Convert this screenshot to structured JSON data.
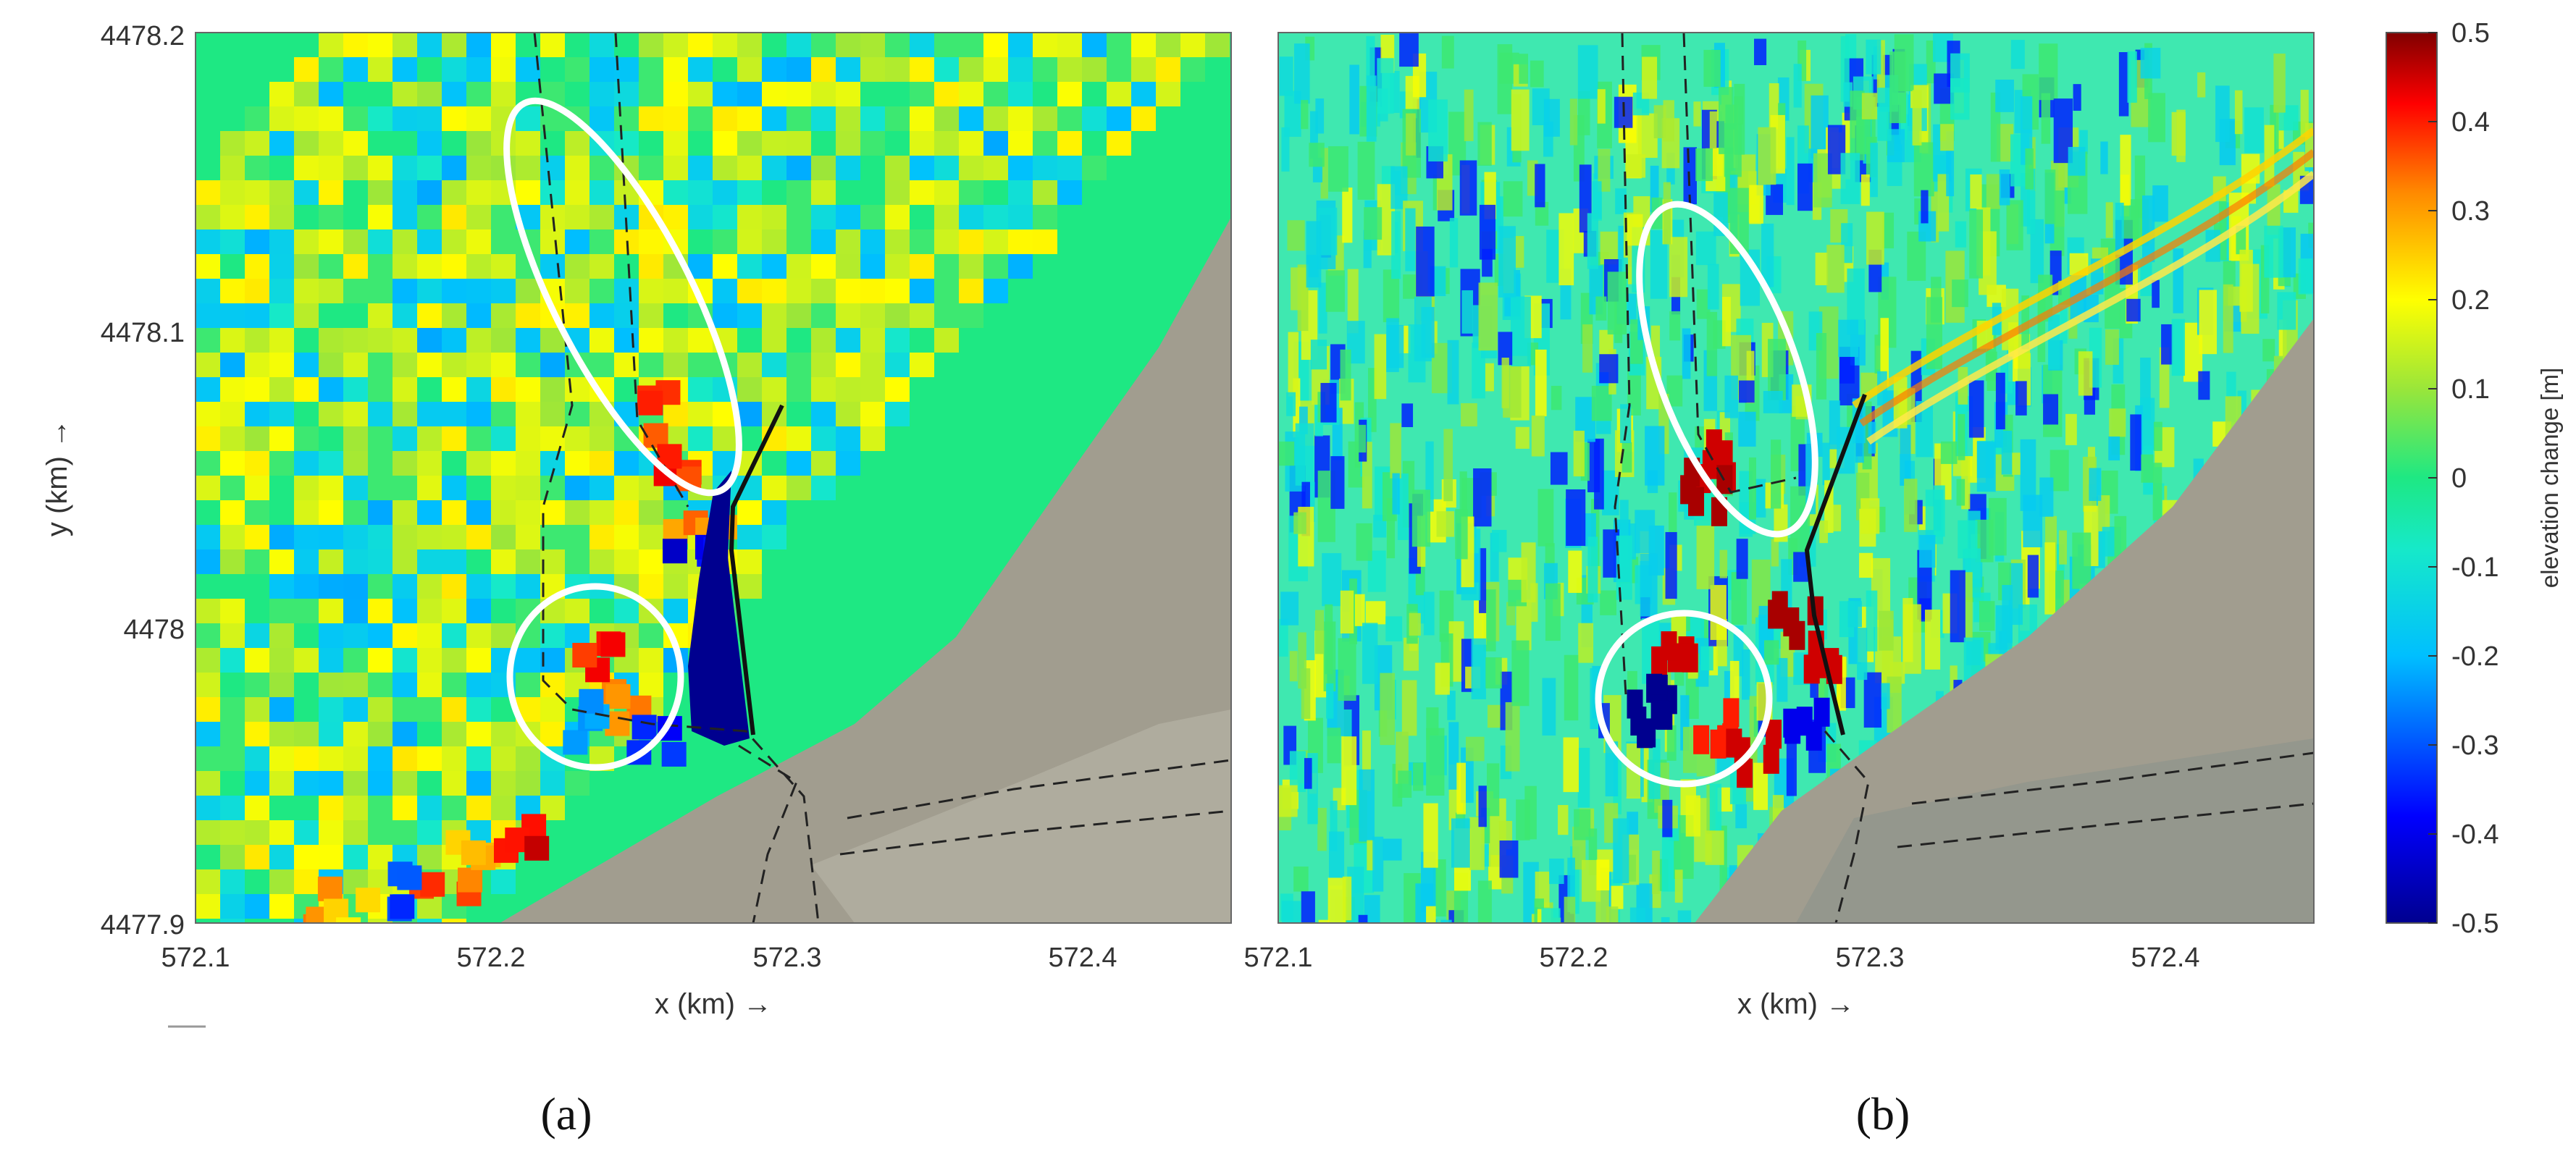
{
  "chart_data": [
    {
      "type": "heatmap",
      "panel_label": "(a)",
      "xlabel": "x (km) →",
      "ylabel": "y (km) →",
      "xlim": [
        572.1,
        572.45
      ],
      "ylim": [
        4477.9,
        4478.2
      ],
      "x_ticks": [
        "572.1",
        "572.2",
        "572.3",
        "572.4"
      ],
      "y_ticks": [
        "4478.2",
        "4478.1",
        "4478",
        "4477.9"
      ],
      "annotations": [
        {
          "shape": "ellipse",
          "color": "#ffffff",
          "center": [
            572.235,
            4478.11
          ]
        },
        {
          "shape": "circle",
          "color": "#ffffff",
          "center": [
            572.235,
            4477.98
          ]
        }
      ]
    },
    {
      "type": "heatmap",
      "panel_label": "(b)",
      "xlabel": "x (km) →",
      "ylabel": "",
      "xlim": [
        572.1,
        572.45
      ],
      "ylim": [
        4477.9,
        4478.2
      ],
      "x_ticks": [
        "572.1",
        "572.2",
        "572.3",
        "572.4"
      ],
      "annotations": [
        {
          "shape": "ellipse",
          "color": "#ffffff",
          "center": [
            572.255,
            4478.08
          ]
        },
        {
          "shape": "circle",
          "color": "#ffffff",
          "center": [
            572.235,
            4477.975
          ]
        }
      ]
    }
  ],
  "colorbar": {
    "label": "elevation change [m]",
    "min": -0.5,
    "max": 0.5,
    "ticks": [
      "0.5",
      "0.4",
      "0.3",
      "0.2",
      "0.1",
      "0",
      "-0.1",
      "-0.2",
      "-0.3",
      "-0.4",
      "-0.5"
    ],
    "colormap": "jet"
  },
  "colors": {
    "land": "#a9a597",
    "water_zero": "#1ee883",
    "annotation": "#ffffff",
    "structure": "#111111"
  }
}
